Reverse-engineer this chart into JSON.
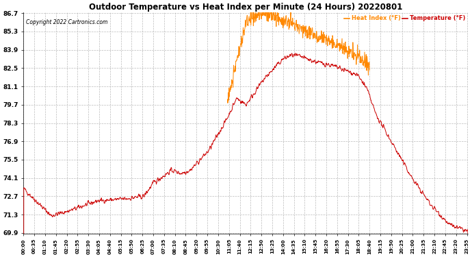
{
  "title": "Outdoor Temperature vs Heat Index per Minute (24 Hours) 20220801",
  "copyright": "Copyright 2022 Cartronics.com",
  "temp_color": "#cc0000",
  "heat_color": "#ff8800",
  "bg_color": "#ffffff",
  "grid_color": "#bbbbbb",
  "yticks": [
    69.9,
    71.3,
    72.7,
    74.1,
    75.5,
    76.9,
    78.3,
    79.7,
    81.1,
    82.5,
    83.9,
    85.3,
    86.7
  ],
  "ymin": 69.9,
  "ymax": 86.7,
  "legend_heat": "Heat Index (°F)",
  "legend_temp": "Temperature (°F)"
}
